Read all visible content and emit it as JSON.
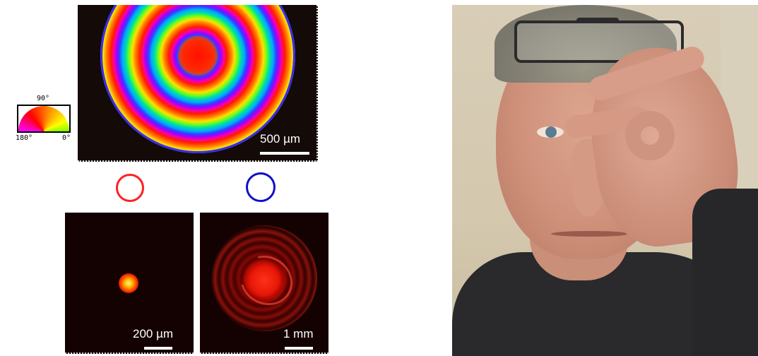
{
  "figure": {
    "interference_panel": {
      "scale_label": "500 µm",
      "hue_legend": {
        "top_label": "90°",
        "left_label": "180°",
        "right_label": "0°"
      }
    },
    "polarization": {
      "left_color": "#ff2020",
      "right_color": "#1010c8"
    },
    "beam_left": {
      "scale_label": "200 µm"
    },
    "beam_right": {
      "scale_label": "1 mm"
    }
  },
  "photo": {
    "subject": "portrait"
  }
}
